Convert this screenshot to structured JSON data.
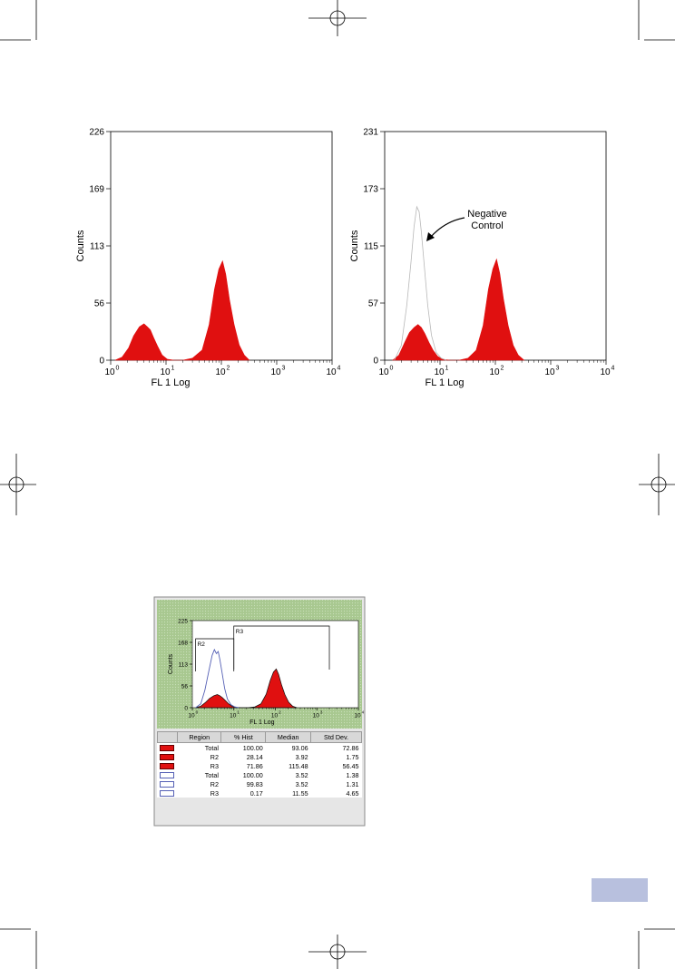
{
  "chart_data": [
    {
      "type": "area",
      "xscale": "log",
      "xlim": [
        1,
        10000
      ],
      "ylim": [
        0,
        226
      ],
      "xlabel": "FL 1 Log",
      "ylabel": "Counts",
      "yticks": [
        "0",
        "56",
        "113",
        "169",
        "226"
      ],
      "xticks": [
        "10",
        "10",
        "10",
        "10",
        "10"
      ],
      "xtick_exponents": [
        "0",
        "1",
        "2",
        "3",
        "4"
      ],
      "series": [
        {
          "color": "#e01010",
          "x": [
            1.2,
            1.6,
            2.1,
            2.6,
            3.3,
            4.0,
            4.6,
            5.2,
            6.0,
            7.0,
            8.5,
            10.5,
            14,
            20,
            30,
            45,
            60,
            75,
            90,
            105,
            120,
            140,
            170,
            210,
            260,
            320
          ],
          "y": [
            0,
            3,
            12,
            24,
            33,
            36,
            33,
            30,
            22,
            14,
            5,
            1,
            0,
            0,
            2,
            10,
            35,
            70,
            90,
            98,
            85,
            60,
            35,
            15,
            5,
            0
          ]
        }
      ]
    },
    {
      "type": "area",
      "xscale": "log",
      "xlim": [
        1,
        10000
      ],
      "ylim": [
        0,
        231
      ],
      "xlabel": "FL 1 Log",
      "ylabel": "Counts",
      "yticks": [
        "0",
        "57",
        "115",
        "173",
        "231"
      ],
      "xticks": [
        "10",
        "10",
        "10",
        "10",
        "10"
      ],
      "xtick_exponents": [
        "0",
        "1",
        "2",
        "3",
        "4"
      ],
      "annotation": "Negative Control",
      "series": [
        {
          "color": "#e01010",
          "x": [
            1.4,
            1.8,
            2.3,
            2.8,
            3.4,
            4.0,
            4.6,
            5.3,
            6.3,
            7.5,
            9.0,
            11,
            15,
            22,
            32,
            45,
            60,
            75,
            90,
            105,
            120,
            140,
            170,
            210,
            260,
            330
          ],
          "y": [
            0,
            5,
            18,
            28,
            33,
            36,
            33,
            27,
            18,
            10,
            4,
            1,
            0,
            0,
            2,
            10,
            35,
            72,
            92,
            102,
            88,
            62,
            35,
            15,
            5,
            0
          ]
        },
        {
          "color": "#b8b8b8",
          "x": [
            1.5,
            2.0,
            2.5,
            3.0,
            3.4,
            3.8,
            4.2,
            4.6,
            5.2,
            6.0,
            7.0,
            8.5,
            10.5,
            13
          ],
          "y": [
            0,
            15,
            55,
            100,
            135,
            155,
            150,
            130,
            95,
            55,
            25,
            8,
            2,
            0
          ]
        }
      ]
    },
    {
      "type": "area",
      "xscale": "log",
      "xlim": [
        1,
        10000
      ],
      "ylim": [
        0,
        225
      ],
      "xlabel": "FL 1 Log",
      "ylabel": "Counts",
      "yticks": [
        "0",
        "56",
        "113",
        "168",
        "225"
      ],
      "xticks": [
        "10",
        "10",
        "10",
        "10",
        "10"
      ],
      "xtick_exponents": [
        "0",
        "1",
        "2",
        "3",
        "4"
      ],
      "regions": [
        {
          "name": "R2",
          "x_start": 1.2,
          "x_end": 10
        },
        {
          "name": "R3",
          "x_start": 10,
          "x_end": 2000
        }
      ],
      "series": [
        {
          "color": "#e01010",
          "x": [
            1.2,
            1.6,
            2.1,
            2.6,
            3.3,
            4.0,
            4.6,
            5.3,
            6.3,
            7.5,
            9.0,
            11,
            15,
            22,
            32,
            45,
            60,
            75,
            90,
            105,
            120,
            140,
            170,
            210,
            260,
            330
          ],
          "y": [
            0,
            4,
            14,
            24,
            31,
            34,
            31,
            26,
            18,
            10,
            4,
            1,
            0,
            0,
            2,
            10,
            35,
            70,
            92,
            100,
            86,
            60,
            34,
            14,
            4,
            0
          ]
        },
        {
          "color": "#5560b5",
          "x": [
            1.2,
            1.6,
            2.0,
            2.5,
            3.0,
            3.4,
            3.8,
            4.2,
            4.6,
            5.2,
            6.0,
            7.0,
            8.5,
            10.5,
            13
          ],
          "y": [
            0,
            10,
            45,
            95,
            135,
            150,
            140,
            145,
            125,
            90,
            50,
            22,
            8,
            2,
            0
          ]
        }
      ]
    }
  ],
  "stats_table": {
    "headers": [
      "Region",
      "% Hist",
      "Median",
      "Std Dev."
    ],
    "rows": [
      {
        "style": "filled",
        "region": "Total",
        "hist": "100.00",
        "median": "93.06",
        "sd": "72.86"
      },
      {
        "style": "filled",
        "region": "R2",
        "hist": "28.14",
        "median": "3.92",
        "sd": "1.75"
      },
      {
        "style": "filled",
        "region": "R3",
        "hist": "71.86",
        "median": "115.48",
        "sd": "56.45"
      },
      {
        "style": "open",
        "region": "Total",
        "hist": "100.00",
        "median": "3.52",
        "sd": "1.38"
      },
      {
        "style": "open",
        "region": "R2",
        "hist": "99.83",
        "median": "3.52",
        "sd": "1.31"
      },
      {
        "style": "open",
        "region": "R3",
        "hist": "0.17",
        "median": "11.55",
        "sd": "4.65"
      }
    ]
  },
  "colors": {
    "fill_red": "#e01010",
    "negative_control": "#b8b8b8",
    "open_blue": "#5560b5",
    "panel_green": "#a8c890",
    "page_tab": "#b8c0de"
  }
}
